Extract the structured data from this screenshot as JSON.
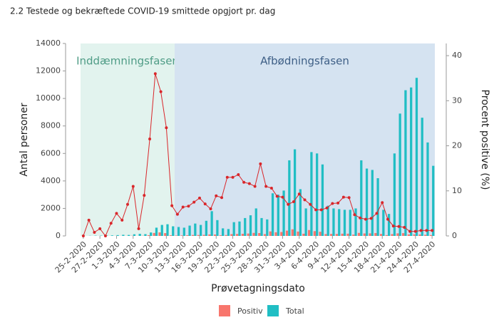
{
  "chart_data": {
    "type": "bar",
    "title": "2.2 Testede og bekræftede COVID-19 smittede opgjort pr. dag",
    "phases": [
      {
        "label": "Inddæmningsfasen",
        "color": "#e2f3ee",
        "text_color": "#4f9c86"
      },
      {
        "label": "Afbødningsfasen",
        "color": "#d5e3f1",
        "text_color": "#3e5f86"
      }
    ],
    "categories": [
      "25-2-2020",
      null,
      null,
      "27-2-2020",
      null,
      null,
      "1-3-2020",
      null,
      null,
      "4-3-2020",
      null,
      null,
      "7-3-2020",
      null,
      null,
      "10-3-2020",
      null,
      null,
      "13-3-2020",
      null,
      null,
      "16-3-2020",
      null,
      null,
      "19-3-2020",
      null,
      null,
      "22-3-2020",
      null,
      null,
      "25-3-2020",
      null,
      null,
      "28-3-2020",
      null,
      null,
      "31-3-2020",
      null,
      null,
      "3-4-2020",
      null,
      null,
      "6-4-2020",
      null,
      null,
      "9-4-2020",
      null,
      null,
      "12-4-2020",
      null,
      null,
      "15-4-2020",
      null,
      null,
      "18-4-2020",
      null,
      null,
      "21-4-2020",
      null,
      null,
      "24-4-2020",
      null,
      null,
      "27-4-2020"
    ],
    "series": [
      {
        "name": "Positiv",
        "color": "#f8766d",
        "values": [
          0,
          0,
          0,
          0,
          0,
          1,
          3,
          3,
          5,
          13,
          2,
          12,
          54,
          216,
          256,
          204,
          47,
          31,
          38,
          50,
          68,
          67,
          78,
          108,
          102,
          47,
          65,
          130,
          143,
          155,
          174,
          220,
          208,
          132,
          329,
          264,
          284,
          385,
          479,
          316,
          160,
          427,
          348,
          302,
          136,
          144,
          142,
          163,
          162,
          94,
          220,
          181,
          187,
          210,
          141,
          59,
          132,
          187,
          201,
          108,
          115,
          103,
          82,
          61
        ]
      },
      {
        "name": "Total",
        "color": "#20bec4",
        "values": [
          0,
          10,
          20,
          20,
          30,
          40,
          60,
          80,
          70,
          120,
          150,
          130,
          250,
          600,
          800,
          850,
          700,
          650,
          600,
          750,
          900,
          800,
          1100,
          1800,
          1150,
          550,
          500,
          1000,
          1050,
          1300,
          1500,
          2000,
          1300,
          1200,
          3100,
          3000,
          3300,
          5500,
          6300,
          3400,
          2000,
          6100,
          6000,
          5200,
          2200,
          2000,
          1950,
          1900,
          1900,
          2000,
          5500,
          4900,
          4800,
          4200,
          1900,
          1600,
          6000,
          8900,
          10600,
          10800,
          11500,
          8600,
          6800,
          5100
        ]
      }
    ],
    "line_series": {
      "color": "#d9262a",
      "axis": "y2",
      "values": [
        0,
        3.5,
        0.8,
        1.6,
        0,
        2.8,
        5,
        3.5,
        7,
        11,
        1.6,
        9,
        21.5,
        36,
        32,
        24,
        6.7,
        4.8,
        6.4,
        6.6,
        7.5,
        8.4,
        7.1,
        6,
        8.9,
        8.5,
        13,
        13,
        13.6,
        11.9,
        11.6,
        11,
        16,
        11,
        10.6,
        8.8,
        8.6,
        7,
        7.6,
        9.3,
        8,
        7,
        5.8,
        5.8,
        6.2,
        7.2,
        7.3,
        8.6,
        8.5,
        4.7,
        4,
        3.7,
        3.9,
        5,
        7.4,
        3.7,
        2.2,
        2.1,
        1.9,
        1,
        1,
        1.2,
        1.2,
        1.2
      ]
    },
    "ylim": [
      0,
      14000
    ],
    "yticks": [
      0,
      2000,
      4000,
      6000,
      8000,
      10000,
      12000,
      14000
    ],
    "y2lim": [
      0,
      42.7
    ],
    "y2ticks": [
      0,
      10,
      20,
      30,
      40
    ],
    "ylabel": "Antal personer",
    "y2label": "Procent positive (%)",
    "xlabel": "Prøvetagningsdato"
  }
}
